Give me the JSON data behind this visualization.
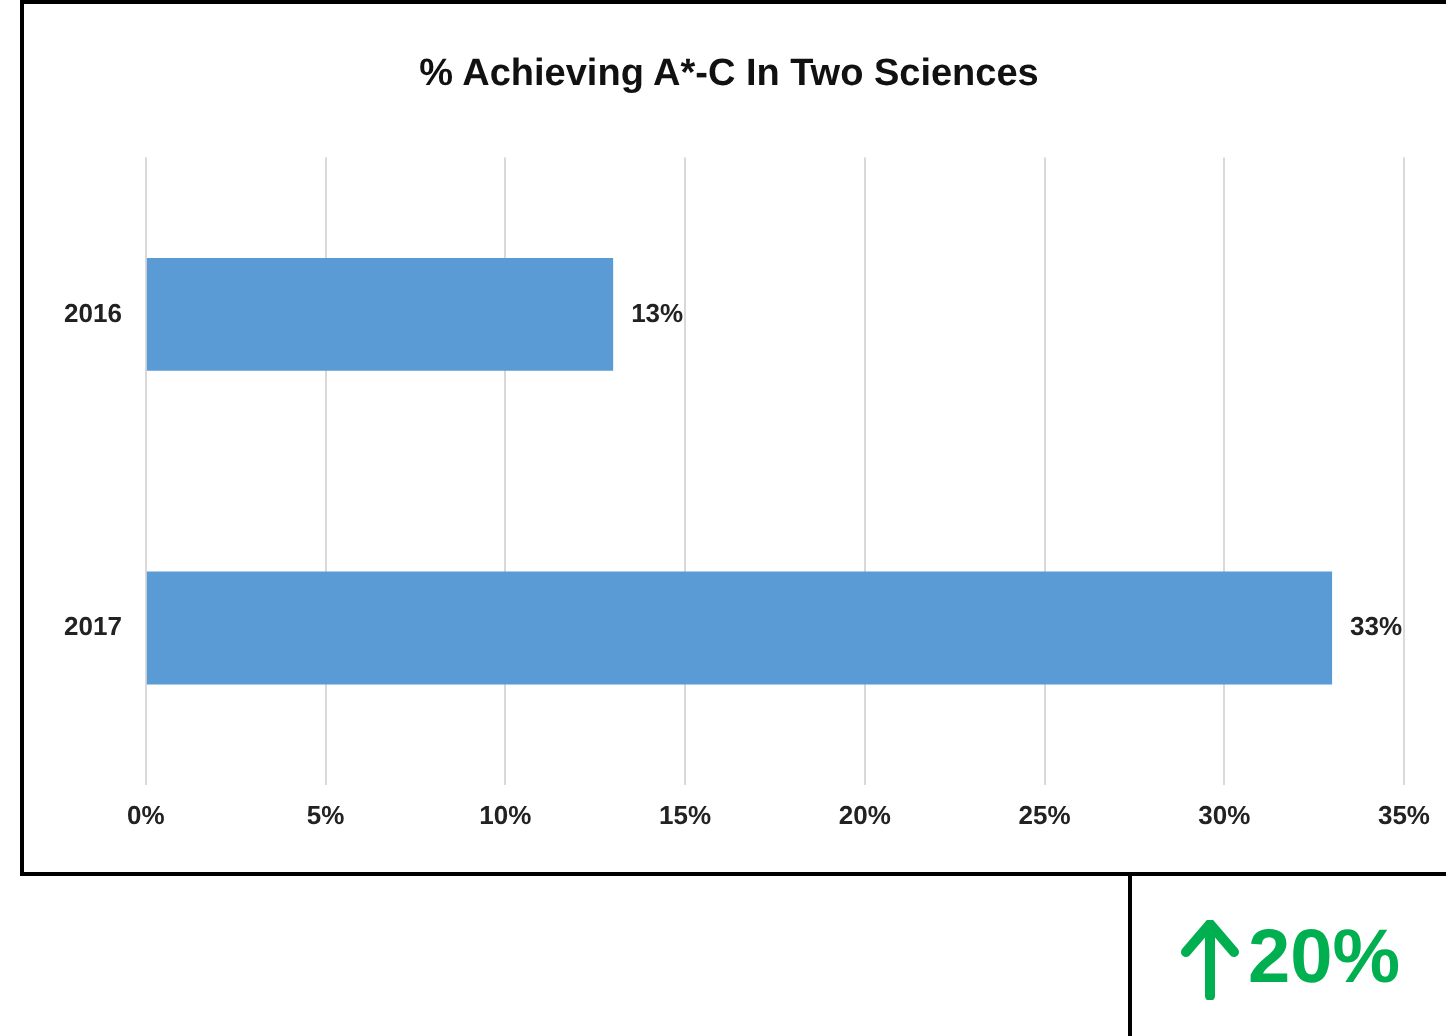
{
  "chart_data": {
    "type": "bar",
    "orientation": "horizontal",
    "title": "% Achieving A*-C In Two Sciences",
    "categories": [
      "2016",
      "2017"
    ],
    "values": [
      13,
      33
    ],
    "value_labels": [
      "13%",
      "33%"
    ],
    "color": "#5b9bd5",
    "xlim": [
      0,
      35
    ],
    "xticks": [
      {
        "value": 0,
        "label": "0%"
      },
      {
        "value": 5,
        "label": "5%"
      },
      {
        "value": 10,
        "label": "10%"
      },
      {
        "value": 15,
        "label": "15%"
      },
      {
        "value": 20,
        "label": "20%"
      },
      {
        "value": 25,
        "label": "25%"
      },
      {
        "value": 30,
        "label": "30%"
      },
      {
        "value": 35,
        "label": "35%"
      }
    ],
    "grid": "x",
    "annotations": [
      "20%"
    ]
  }
}
